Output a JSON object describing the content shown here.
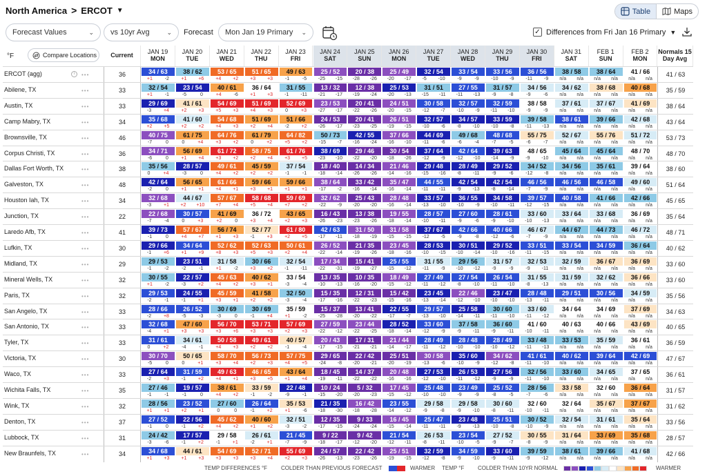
{
  "breadcrumb": {
    "region": "North America",
    "separator": ">",
    "market": "ERCOT"
  },
  "view": {
    "table": "Table",
    "maps": "Maps"
  },
  "controls": {
    "values": "Forecast Values",
    "baseline": "vs 10yr Avg",
    "forecast_label": "Forecast",
    "forecast_run": "Mon Jan 19 Primary",
    "differences": "Differences from Fri Jan 16 Primary"
  },
  "header": {
    "unit": "°F",
    "compare": "Compare Locations",
    "current": "Current",
    "normals": "Normals 15 Day Avg",
    "days": [
      [
        "JAN 19",
        "MON"
      ],
      [
        "JAN 20",
        "TUE"
      ],
      [
        "JAN 21",
        "WED"
      ],
      [
        "JAN 22",
        "THU"
      ],
      [
        "JAN 23",
        "FRI"
      ],
      [
        "JAN 24",
        "SAT"
      ],
      [
        "JAN 25",
        "SUN"
      ],
      [
        "JAN 26",
        "MON"
      ],
      [
        "JAN 27",
        "TUE"
      ],
      [
        "JAN 28",
        "WED"
      ],
      [
        "JAN 29",
        "THU"
      ],
      [
        "JAN 30",
        "FRI"
      ],
      [
        "JAN 31",
        "SAT"
      ],
      [
        "FEB 1",
        "SUN"
      ],
      [
        "FEB 2",
        "MON"
      ]
    ]
  },
  "rows": [
    {
      "name": "ERCOT (agg)",
      "cur": "36",
      "norm": "41 / 63",
      "t": [
        "34 / 63",
        "38 / 62",
        "53 / 65",
        "51 / 65",
        "49 / 63",
        "25 / 52",
        "20 / 38",
        "25 / 49",
        "32 / 54",
        "33 / 54",
        "33 / 56",
        "36 / 56",
        "38 / 58",
        "38 / 64",
        "41 / 66"
      ],
      "d": [
        "+1|-2",
        "+1|+6",
        "+4|+2",
        "+3|+3",
        "-1|-5",
        "-25|-15",
        "-28|-26",
        "-20|-17",
        "-5|-10",
        "-9|-9",
        "-10|-9",
        "-11|-9",
        "n/a|n/a",
        "n/a|n/a",
        "n/a|n/a"
      ]
    },
    {
      "name": "Abilene, TX",
      "cur": "33",
      "norm": "35 / 59",
      "t": [
        "32 / 54",
        "23 / 54",
        "40 / 61",
        "36 / 64",
        "31 / 55",
        "13 / 32",
        "12 / 38",
        "25 / 53",
        "31 / 51",
        "27 / 55",
        "31 / 57",
        "34 / 56",
        "34 / 62",
        "38 / 68",
        "40 / 68"
      ],
      "d": [
        "+1|-1",
        "-5|0",
        "+4|-6",
        "+1|+3",
        "-1|-11",
        "-21|-17",
        "-19|-24",
        "-20|-13",
        "-15|-11",
        "-11|-13",
        "-9|-8",
        "-9|-6",
        "n/a|n/a",
        "n/a|n/a",
        "n/a|n/a"
      ]
    },
    {
      "name": "Austin, TX",
      "cur": "33",
      "norm": "38 / 64",
      "t": [
        "29 / 69",
        "41 / 61",
        "54 / 69",
        "51 / 69",
        "52 / 69",
        "23 / 53",
        "20 / 41",
        "24 / 51",
        "30 / 58",
        "32 / 57",
        "32 / 59",
        "38 / 58",
        "37 / 61",
        "37 / 67",
        "41 / 69"
      ],
      "d": [
        "-3|+4",
        "+2|+3",
        "+5|+3",
        "+4|+3",
        "0|+3",
        "-27|-17",
        "-22|-26",
        "-20|-15",
        "-12|-7",
        "-10|-9",
        "-11|-10",
        "-9|-9",
        "n/a|n/a",
        "n/a|n/a",
        "n/a|n/a"
      ]
    },
    {
      "name": "Camp Mabry, TX",
      "cur": "34",
      "norm": "43 / 64",
      "t": [
        "35 / 68",
        "41 / 60",
        "54 / 68",
        "51 / 69",
        "51 / 66",
        "24 / 53",
        "20 / 41",
        "26 / 51",
        "32 / 57",
        "34 / 57",
        "33 / 59",
        "39 / 58",
        "38 / 61",
        "39 / 66",
        "42 / 68"
      ],
      "d": [
        "+2|+5",
        "+2|+2",
        "+4|+3",
        "+2|+4",
        "-2|+2",
        "-26|-17",
        "-23|-25",
        "-19|-15",
        "-10|-6",
        "-8|-10",
        "-10|-8",
        "-11|-13",
        "n/a|n/a",
        "n/a|n/a",
        "n/a|n/a"
      ]
    },
    {
      "name": "Brownsville, TX",
      "cur": "46",
      "norm": "53 / 73",
      "t": [
        "40 / 75",
        "61 / 75",
        "64 / 76",
        "61 / 79",
        "64 / 82",
        "50 / 73",
        "42 / 55",
        "37 / 66",
        "44 / 69",
        "49 / 68",
        "48 / 68",
        "55 / 75",
        "52 / 67",
        "55 / 76",
        "51 / 72"
      ],
      "d": [
        "-7|0",
        "0|+4",
        "+3|+2",
        "0|+2",
        "+5|+2",
        "-15|-7",
        "-16|-24",
        "-16|-10",
        "-11|-6",
        "-6|-4",
        "-7|-5",
        "-6|-7",
        "n/a|n/a",
        "n/a|n/a",
        "n/a|n/a"
      ]
    },
    {
      "name": "Corpus Christi, TX",
      "cur": "36",
      "norm": "48 / 70",
      "t": [
        "34 / 71",
        "56 / 69",
        "61 / 72",
        "58 / 75",
        "61 / 76",
        "38 / 69",
        "29 / 46",
        "30 / 54",
        "37 / 64",
        "42 / 64",
        "39 / 63",
        "48 / 65",
        "45 / 64",
        "45 / 64",
        "48 / 70"
      ],
      "d": [
        "-6|0",
        "+1|+4",
        "+3|+2",
        "+2|+4",
        "+3|+5",
        "-23|-10",
        "-22|-20",
        "-18|-26",
        "-12|-9",
        "-12|-10",
        "-14|-9",
        "-9|-10",
        "n/a|n/a",
        "n/a|n/a",
        "n/a|n/a"
      ]
    },
    {
      "name": "Dallas Fort Worth, TX",
      "cur": "38",
      "norm": "38 / 60",
      "t": [
        "35 / 56",
        "28 / 57",
        "49 / 61",
        "45 / 59",
        "37 / 54",
        "18 / 40",
        "14 / 34",
        "21 / 46",
        "29 / 48",
        "28 / 49",
        "29 / 52",
        "34 / 52",
        "34 / 56",
        "35 / 61",
        "39 / 64"
      ],
      "d": [
        "0|+4",
        "-3|0",
        "+4|+2",
        "+2|+2",
        "-1|-1",
        "-18|-14",
        "-26|-26",
        "-14|-16",
        "-15|-16",
        "-8|-11",
        "-9|-6",
        "-12|-8",
        "n/a|n/a",
        "n/a|n/a",
        "n/a|n/a"
      ]
    },
    {
      "name": "Galveston, TX",
      "cur": "48",
      "norm": "51 / 64",
      "t": [
        "42 / 64",
        "56 / 65",
        "61 / 66",
        "59 / 66",
        "59 / 66",
        "38 / 64",
        "33 / 42",
        "35 / 47",
        "44 / 55",
        "42 / 54",
        "42 / 54",
        "46 / 56",
        "46 / 56",
        "46 / 58",
        "49 / 60"
      ],
      "d": [
        "-2|0",
        "+1|+1",
        "+4|+1",
        "+3|+1",
        "+1|+1",
        "-17|-2",
        "-16|-14",
        "-16|-14",
        "-11|-11",
        "-9|-13",
        "-8|-14",
        "-7|-9",
        "n/a|n/a",
        "n/a|n/a",
        "n/a|n/a"
      ]
    },
    {
      "name": "Houston Iah, TX",
      "cur": "34",
      "norm": "45 / 65",
      "t": [
        "32 / 68",
        "44 / 67",
        "57 / 67",
        "58 / 68",
        "59 / 69",
        "32 / 62",
        "25 / 43",
        "28 / 48",
        "33 / 57",
        "36 / 55",
        "34 / 58",
        "39 / 57",
        "40 / 58",
        "41 / 66",
        "42 / 66"
      ],
      "d": [
        "-3|+1",
        "+2|+10",
        "+7|+4",
        "+5|+4",
        "+7|+2",
        "-22|-9",
        "-20|-20",
        "-16|-14",
        "-13|-10",
        "-10|-9",
        "-10|-11",
        "-12|-15",
        "n/a|n/a",
        "n/a|n/a",
        "n/a|n/a"
      ]
    },
    {
      "name": "Junction, TX",
      "cur": "22",
      "norm": "35 / 64",
      "t": [
        "22 / 68",
        "30 / 57",
        "41 / 69",
        "36 / 72",
        "43 / 65",
        "16 / 43",
        "13 / 38",
        "19 / 55",
        "28 / 57",
        "27 / 60",
        "28 / 61",
        "33 / 60",
        "33 / 64",
        "33 / 68",
        "36 / 69"
      ],
      "d": [
        "-7|-4",
        "0|+3",
        "+2|0",
        "+3|+4",
        "+2|+3",
        "-26|-23",
        "-23|-26",
        "-18|-14",
        "-10|-11",
        "-9|-6",
        "-9|-10",
        "-10|-13",
        "n/a|n/a",
        "n/a|n/a",
        "n/a|n/a"
      ]
    },
    {
      "name": "Laredo Afb, TX",
      "cur": "41",
      "norm": "48 / 71",
      "t": [
        "39 / 73",
        "57 / 67",
        "56 / 74",
        "52 / 77",
        "61 / 80",
        "42 / 63",
        "31 / 50",
        "31 / 58",
        "37 / 67",
        "42 / 66",
        "40 / 66",
        "46 / 67",
        "44 / 67",
        "44 / 73",
        "46 / 72"
      ],
      "d": [
        "-1|0",
        "+4|+7",
        "+1|+3",
        "-1|+3",
        "+2|+5",
        "-17|-11",
        "-18|-19",
        "-15|-15",
        "-12|-5",
        "-9|-8",
        "-12|-6",
        "-7|-9",
        "n/a|n/a",
        "n/a|n/a",
        "n/a|n/a"
      ]
    },
    {
      "name": "Lufkin, TX",
      "cur": "30",
      "norm": "40 / 62",
      "t": [
        "29 / 66",
        "34 / 64",
        "52 / 62",
        "52 / 63",
        "50 / 61",
        "26 / 52",
        "21 / 35",
        "23 / 45",
        "28 / 53",
        "30 / 51",
        "29 / 52",
        "33 / 51",
        "33 / 54",
        "34 / 59",
        "36 / 64"
      ],
      "d": [
        "-1|+6",
        "+1|+9",
        "+8|+3",
        "+5|+3",
        "+2|+4",
        "-22|-14",
        "-19|-26",
        "-18|-16",
        "-10|-15",
        "-10|-14",
        "-10|-16",
        "-11|-15",
        "n/a|n/a",
        "n/a|n/a",
        "n/a|n/a"
      ]
    },
    {
      "name": "Midland, TX",
      "cur": "29",
      "norm": "33 / 60",
      "t": [
        "29 / 53",
        "23 / 51",
        "31 / 58",
        "30 / 66",
        "32 / 54",
        "17 / 34",
        "15 / 41",
        "25 / 55",
        "31 / 55",
        "29 / 56",
        "31 / 57",
        "32 / 53",
        "32 / 59",
        "36 / 67",
        "36 / 69"
      ],
      "d": [
        "-1|-2",
        "-2|-1",
        "+1|-2",
        "+3|+2",
        "-1|-11",
        "-22|-31",
        "-19|-27",
        "-15|-12",
        "-11|-9",
        "-10|-12",
        "-9|-9",
        "-9|-11",
        "n/a|n/a",
        "n/a|n/a",
        "n/a|n/a"
      ]
    },
    {
      "name": "Mineral Wells, TX",
      "cur": "32",
      "norm": "33 / 60",
      "t": [
        "30 / 55",
        "22 / 57",
        "45 / 63",
        "40 / 62",
        "33 / 54",
        "13 / 35",
        "10 / 35",
        "18 / 49",
        "27 / 49",
        "27 / 54",
        "26 / 54",
        "31 / 55",
        "31 / 59",
        "32 / 62",
        "36 / 66"
      ],
      "d": [
        "+1|-2",
        "-3|+2",
        "+4|+2",
        "+3|+1",
        "-3|-4",
        "-10|-13",
        "-16|-20",
        "-15|-12",
        "-11|-12",
        "-8|-10",
        "-11|-10",
        "-8|-13",
        "n/a|n/a",
        "n/a|n/a",
        "n/a|n/a"
      ]
    },
    {
      "name": "Paris, TX",
      "cur": "32",
      "norm": "35 / 56",
      "t": [
        "29 / 53",
        "24 / 55",
        "45 / 59",
        "41 / 58",
        "32 / 50",
        "15 / 35",
        "12 / 31",
        "15 / 42",
        "23 / 45",
        "22 / 46",
        "23 / 47",
        "28 / 48",
        "29 / 51",
        "30 / 56",
        "34 / 59"
      ],
      "d": [
        "-2|-1",
        "-1|+1",
        "+3|+1",
        "+2|+2",
        "-3|-4",
        "-17|-16",
        "-22|-23",
        "-15|-16",
        "-13|-14",
        "-12|-10",
        "-10|-10",
        "-13|-11",
        "n/a|n/a",
        "n/a|n/a",
        "n/a|n/a"
      ]
    },
    {
      "name": "San Angelo, TX",
      "cur": "33",
      "norm": "34 / 63",
      "t": [
        "28 / 66",
        "26 / 52",
        "30 / 69",
        "30 / 69",
        "35 / 59",
        "15 / 37",
        "13 / 41",
        "22 / 55",
        "29 / 57",
        "25 / 58",
        "30 / 60",
        "33 / 60",
        "34 / 64",
        "34 / 69",
        "37 / 69"
      ],
      "d": [
        "-2|+8",
        "-5|-3",
        "-3|0",
        "-1|+4",
        "+1|-2",
        "-25|-28",
        "-20|-22",
        "-17|-7",
        "-13|-10",
        "-14|-11",
        "-11|-10",
        "-11|-12",
        "n/a|n/a",
        "n/a|n/a",
        "n/a|n/a"
      ]
    },
    {
      "name": "San Antonio, TX",
      "cur": "33",
      "norm": "40 / 65",
      "t": [
        "32 / 68",
        "47 / 60",
        "56 / 70",
        "53 / 71",
        "57 / 69",
        "27 / 59",
        "23 / 44",
        "28 / 52",
        "33 / 60",
        "37 / 58",
        "36 / 60",
        "41 / 60",
        "40 / 63",
        "40 / 66",
        "43 / 69"
      ],
      "d": [
        "-4|+1",
        "+3|+3",
        "+3|+6",
        "+3|+3",
        "+2|+3",
        "-22|-12",
        "-22|-25",
        "-18|-14",
        "-12|-9",
        "-9|-11",
        "-9|-11",
        "-10|-11",
        "n/a|n/a",
        "n/a|n/a",
        "n/a|n/a"
      ]
    },
    {
      "name": "Tyler, TX",
      "cur": "33",
      "norm": "36 / 59",
      "t": [
        "31 / 61",
        "34 / 61",
        "50 / 58",
        "49 / 61",
        "40 / 57",
        "20 / 43",
        "17 / 31",
        "21 / 44",
        "28 / 49",
        "28 / 48",
        "28 / 49",
        "33 / 48",
        "33 / 53",
        "35 / 59",
        "36 / 61"
      ],
      "d": [
        "0|+2",
        "-4|-1",
        "+4|+3",
        "+2|+2",
        "-1|-4",
        "-17|-15",
        "-21|-21",
        "-14|-17",
        "-11|-12",
        "-10|-10",
        "-10|-12",
        "-11|-13",
        "n/a|n/a",
        "n/a|n/a",
        "n/a|n/a"
      ]
    },
    {
      "name": "Victoria, TX",
      "cur": "30",
      "norm": "47 / 67",
      "t": [
        "30 / 70",
        "50 / 65",
        "58 / 70",
        "56 / 73",
        "57 / 75",
        "29 / 65",
        "22 / 42",
        "25 / 51",
        "30 / 58",
        "35 / 60",
        "34 / 62",
        "41 / 61",
        "40 / 62",
        "39 / 64",
        "42 / 69"
      ],
      "d": [
        "-5|0",
        "0|+1",
        "+3|+4",
        "+2|+3",
        "+4|+5",
        "-24|-8",
        "-20|-21",
        "-20|-19",
        "-13|-6",
        "-10|-9",
        "-12|-8",
        "-11|-10",
        "n/a|n/a",
        "n/a|n/a",
        "n/a|n/a"
      ]
    },
    {
      "name": "Waco, TX",
      "cur": "33",
      "norm": "36 / 61",
      "t": [
        "27 / 64",
        "31 / 59",
        "49 / 63",
        "46 / 65",
        "43 / 64",
        "18 / 45",
        "14 / 37",
        "20 / 48",
        "27 / 53",
        "26 / 53",
        "27 / 56",
        "32 / 56",
        "33 / 60",
        "34 / 65",
        "37 / 65"
      ],
      "d": [
        "-2|+3",
        "-1|+2",
        "+4|+1",
        "+3|+5",
        "+1|+4",
        "-19|-11",
        "-22|-22",
        "-16|-16",
        "-12|-10",
        "-11|-12",
        "-9|-9",
        "-11|-10",
        "n/a|n/a",
        "n/a|n/a",
        "n/a|n/a"
      ]
    },
    {
      "name": "Wichita Falls, TX",
      "cur": "35",
      "norm": "31 / 57",
      "t": [
        "27 / 46",
        "19 / 57",
        "38 / 61",
        "33 / 59",
        "22 / 48",
        "10 / 24",
        "5 / 32",
        "17 / 45",
        "25 / 48",
        "23 / 49",
        "25 / 52",
        "28 / 56",
        "33 / 58",
        "32 / 60",
        "36 / 64"
      ],
      "d": [
        "-1|-1",
        "-1|0",
        "+4|+2",
        "-1|-2",
        "-9|-1",
        "-15|-20",
        "-20|-23",
        "-15|-12",
        "-10|-10",
        "-9|-9",
        "-8|-5",
        "-7|-6",
        "n/a|n/a",
        "n/a|n/a",
        "n/a|n/a"
      ]
    },
    {
      "name": "Wink, TX",
      "cur": "32",
      "norm": "31 / 62",
      "t": [
        "28 / 56",
        "23 / 52",
        "27 / 60",
        "26 / 64",
        "35 / 53",
        "21 / 35",
        "16 / 42",
        "23 / 55",
        "29 / 58",
        "29 / 58",
        "30 / 60",
        "32 / 60",
        "32 / 64",
        "35 / 67",
        "37 / 67"
      ],
      "d": [
        "+1|+1",
        "+2|+1",
        "0|0",
        "-1|+2",
        "+1|-6",
        "-18|-30",
        "-18|-28",
        "-14|-12",
        "-9|-8",
        "-9|-10",
        "-8|-11",
        "-10|-11",
        "n/a|n/a",
        "n/a|n/a",
        "n/a|n/a"
      ]
    },
    {
      "name": "Denton, TX",
      "cur": "37",
      "norm": "33 / 56",
      "t": [
        "27 / 52",
        "22 / 56",
        "45 / 62",
        "40 / 60",
        "32 / 51",
        "12 / 35",
        "9 / 33",
        "16 / 45",
        "25 / 47",
        "23 / 48",
        "25 / 51",
        "30 / 52",
        "32 / 54",
        "31 / 61",
        "35 / 64"
      ],
      "d": [
        "-1|0",
        "-1|+2",
        "+4|+2",
        "+1|+2",
        "-3|-2",
        "-17|-15",
        "-24|-24",
        "-15|-14",
        "-11|-11",
        "-9|-13",
        "-10|-8",
        "-10|-9",
        "n/a|n/a",
        "n/a|n/a",
        "n/a|n/a"
      ]
    },
    {
      "name": "Lubbock, TX",
      "cur": "31",
      "norm": "28 / 57",
      "t": [
        "24 / 42",
        "17 / 57",
        "29 / 58",
        "26 / 61",
        "21 / 45",
        "9 / 22",
        "9 / 42",
        "21 / 54",
        "26 / 53",
        "23 / 54",
        "27 / 52",
        "30 / 55",
        "31 / 64",
        "33 / 69",
        "35 / 68"
      ],
      "d": [
        "-3|-6",
        "-1|+2",
        "-1|+1",
        "-2|+1",
        "-7|-9",
        "-18|-17",
        "-12|-20",
        "-12|-11",
        "-8|-11",
        "-10|-5",
        "-9|-7",
        "-8|-9",
        "n/a|n/a",
        "n/a|n/a",
        "n/a|n/a"
      ]
    },
    {
      "name": "New Braunfels, TX",
      "cur": "34",
      "norm": "42 / 66",
      "t": [
        "34 / 68",
        "44 / 61",
        "54 / 69",
        "52 / 71",
        "55 / 69",
        "24 / 57",
        "22 / 42",
        "25 / 51",
        "32 / 59",
        "34 / 59",
        "33 / 60",
        "39 / 59",
        "38 / 61",
        "39 / 66",
        "41 / 68"
      ],
      "d": [
        "+1|+3",
        "+1|+3",
        "+3|+3",
        "+3|+4",
        "+2|+3",
        "-26|-13",
        "-23|-26",
        "-19|-15",
        "-12|-8",
        "-9|-10",
        "-9|-11",
        "-9|-12",
        "n/a|n/a",
        "n/a|n/a",
        "n/a|n/a"
      ]
    }
  ],
  "legend": {
    "diff": "TEMP DIFFERENCES °F",
    "colder_prev": "COLDER THAN PREVIOUS FORECAST",
    "warmer1": "WARMER",
    "temp": "TEMP °F",
    "colder_norm": "COLDER THAN 10YR NORMAL",
    "warmer2": "WARMER"
  },
  "colors": {
    "blue_deep": "#1a20b0",
    "blue": "#2c4fd6",
    "lightblue": "#8ecae6",
    "pale": "#d7ecf6",
    "neutral": "#ffffff",
    "peach": "#fde4c4",
    "orange": "#f7a24a",
    "deep_orange": "#f06b26",
    "red": "#e3262b",
    "purple": "#8c4fbf",
    "violet": "#6a2fa6"
  }
}
